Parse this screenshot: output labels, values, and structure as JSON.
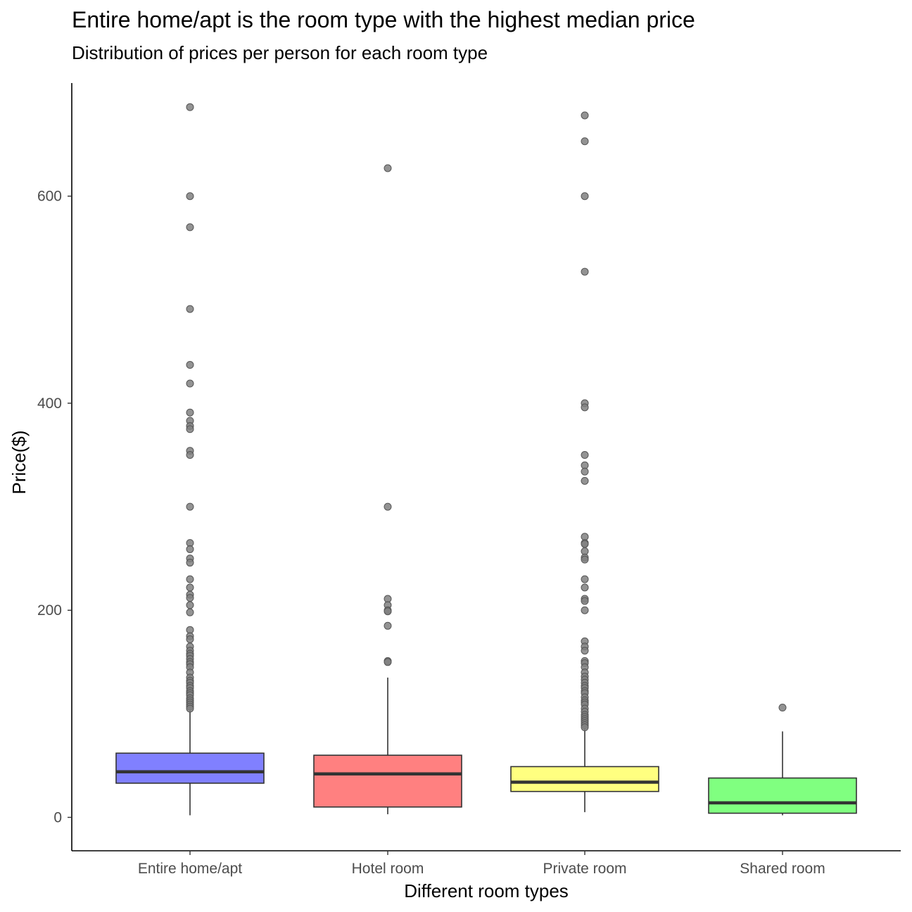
{
  "chart_data": {
    "type": "boxplot",
    "title": "Entire home/apt is the room type with the highest median price",
    "subtitle": "Distribution of prices per person for each room type",
    "xlabel": "Different room types",
    "ylabel": "Price($)",
    "ylim": [
      -32,
      710
    ],
    "y_ticks": [
      0,
      200,
      400,
      600
    ],
    "grid": false,
    "categories": [
      "Entire home/apt",
      "Hotel room",
      "Private room",
      "Shared room"
    ],
    "colors": [
      "#8080ff",
      "#ff8080",
      "#ffff80",
      "#80ff80"
    ],
    "outlier_color": "#808080",
    "boxes": [
      {
        "category": "Entire home/apt",
        "whisker_low": 2,
        "q1": 33,
        "median": 44,
        "q3": 62,
        "whisker_high": 104,
        "outliers": [
          686,
          600,
          570,
          491,
          437,
          419,
          391,
          383,
          378,
          375,
          354,
          350,
          300,
          265,
          259,
          250,
          246,
          230,
          222,
          215,
          212,
          205,
          198,
          181,
          175,
          172,
          165,
          161,
          158,
          156,
          153,
          150,
          148,
          145,
          140,
          135,
          132,
          130,
          127,
          125,
          122,
          120,
          118,
          115,
          113,
          111,
          109,
          107,
          105
        ]
      },
      {
        "category": "Hotel room",
        "whisker_low": 3,
        "q1": 10,
        "median": 42,
        "q3": 60,
        "whisker_high": 135,
        "outliers": [
          627,
          300,
          211,
          205,
          200,
          199,
          185,
          151,
          150
        ]
      },
      {
        "category": "Private room",
        "whisker_low": 5,
        "q1": 25,
        "median": 34,
        "q3": 49,
        "whisker_high": 86,
        "outliers": [
          678,
          653,
          600,
          527,
          400,
          396,
          350,
          340,
          334,
          325,
          271,
          265,
          264,
          257,
          251,
          249,
          230,
          222,
          211,
          209,
          200,
          170,
          165,
          161,
          151,
          149,
          145,
          140,
          136,
          133,
          130,
          127,
          125,
          122,
          120,
          116,
          113,
          111,
          109,
          105,
          102,
          99,
          97,
          95,
          93,
          91,
          89,
          87
        ]
      },
      {
        "category": "Shared room",
        "whisker_low": 2,
        "q1": 4,
        "median": 14,
        "q3": 38,
        "whisker_high": 83,
        "outliers": [
          106
        ]
      }
    ]
  }
}
